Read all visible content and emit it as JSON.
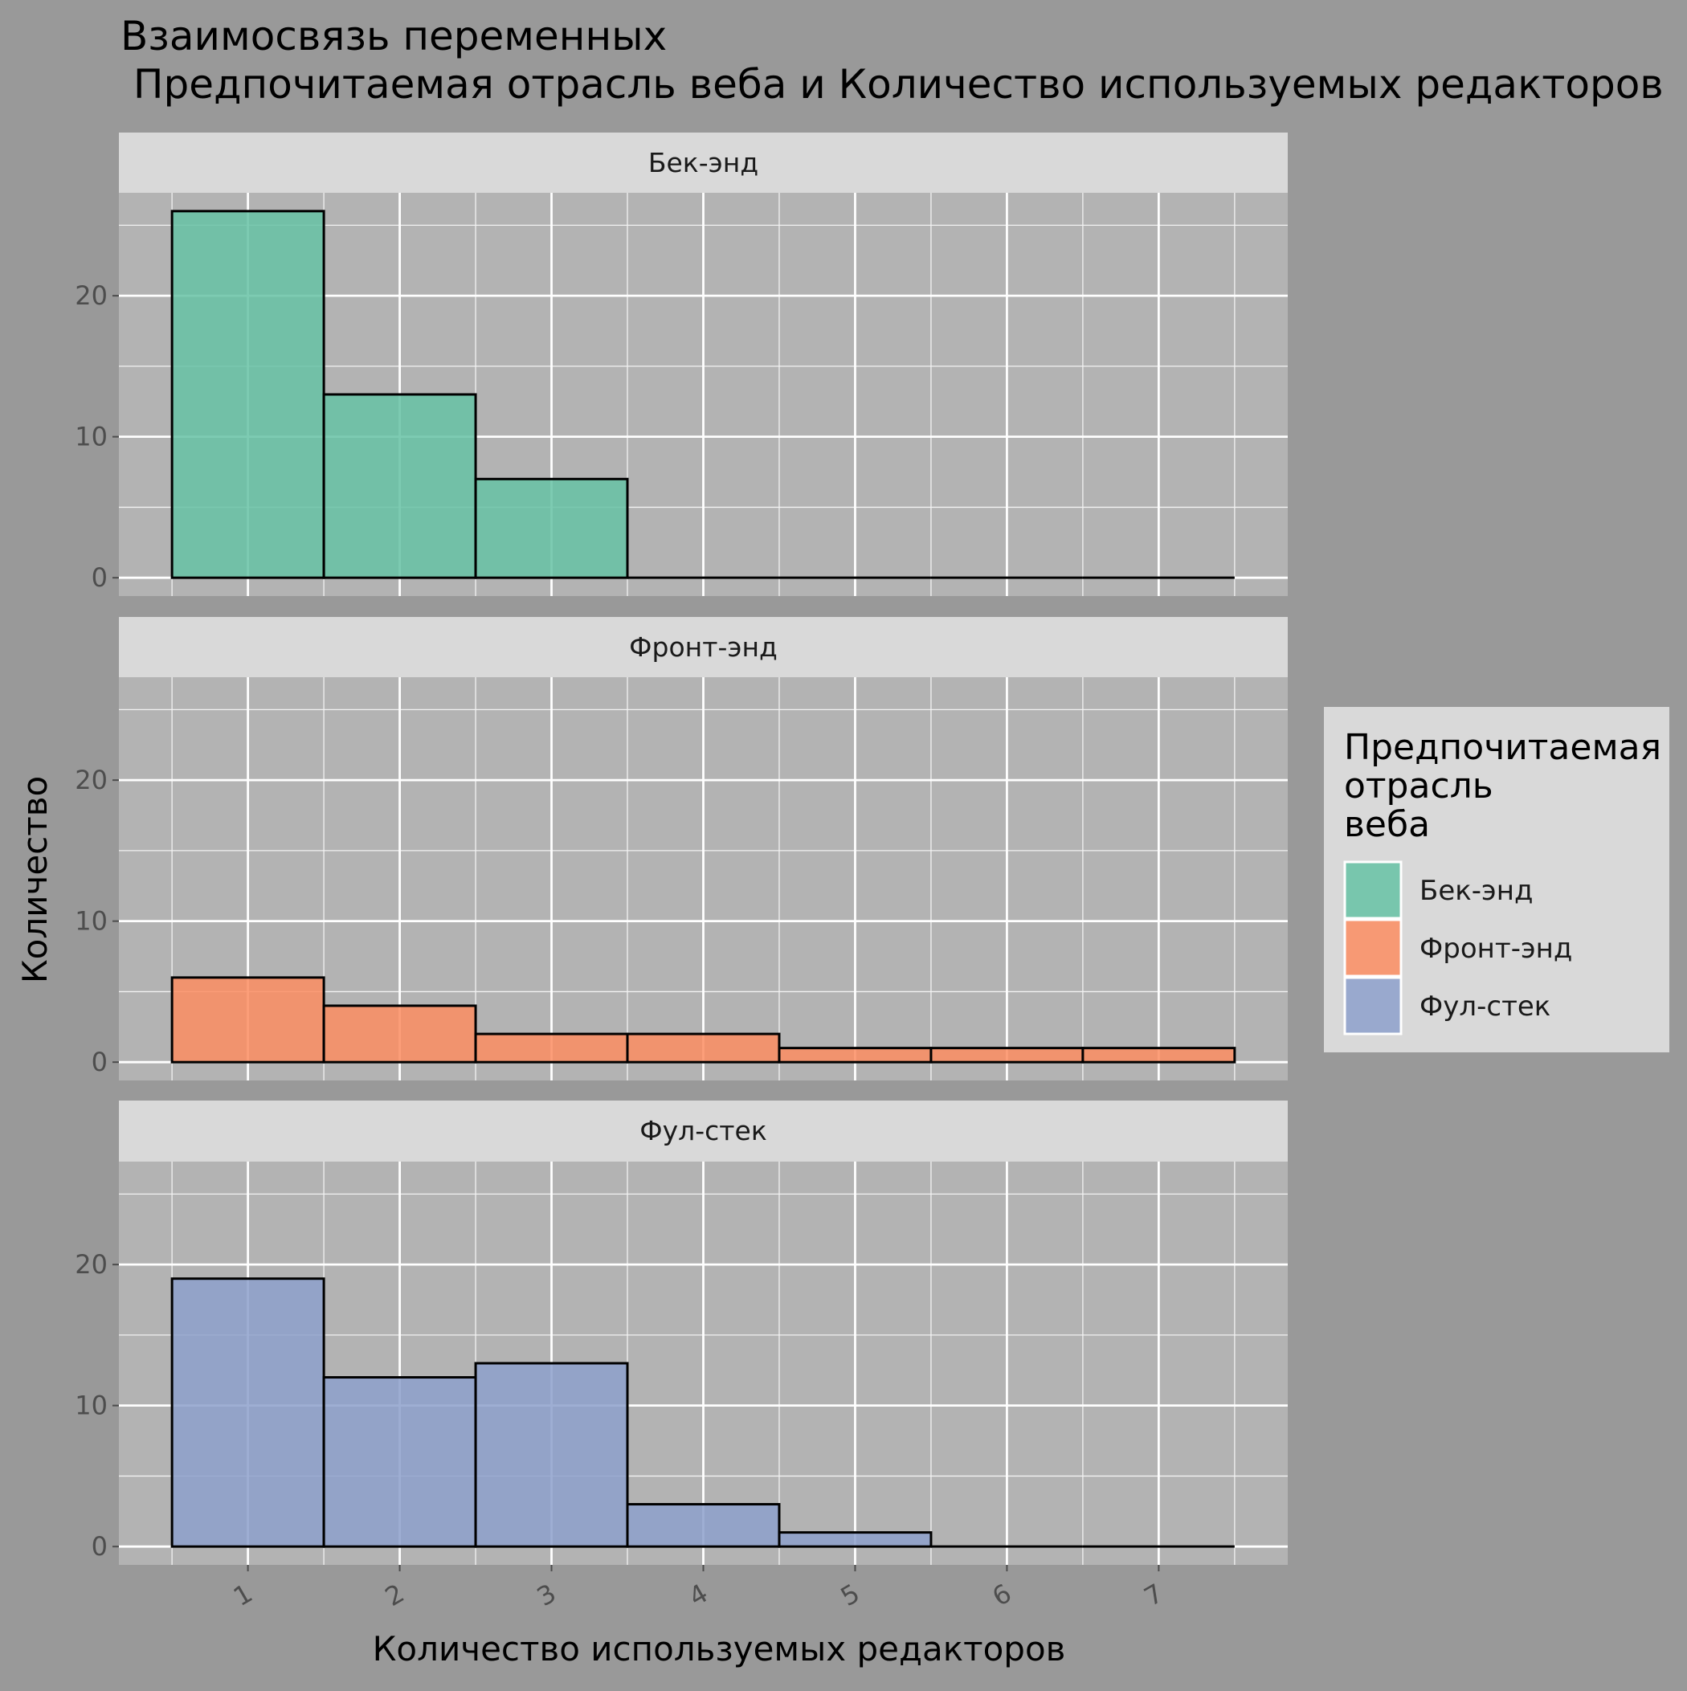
{
  "chart_data": {
    "type": "bar",
    "title_line1": "Взаимосвязь переменных",
    "title_line2": " Предпочитаемая отрасль веба и Количество используемых редакторов",
    "xlabel": "Количество используемых редакторов",
    "ylabel": "Количество",
    "x_ticks": [
      "1",
      "2",
      "3",
      "4",
      "5",
      "6",
      "7"
    ],
    "y_ticks": [
      "0",
      "10",
      "20"
    ],
    "xlim": [
      0.15,
      7.85
    ],
    "ylim": [
      -1.3,
      27.3
    ],
    "legend": {
      "title_lines": [
        "Предпочитаемая",
        "отрасль",
        "веба"
      ],
      "position": "right"
    },
    "series": [
      {
        "name": "Бек-энд",
        "color": "#66c2a5",
        "bins": [
          1,
          2,
          3,
          4,
          5,
          6,
          7
        ],
        "values": [
          26,
          13,
          7,
          0,
          0,
          0,
          0
        ]
      },
      {
        "name": "Фронт-энд",
        "color": "#fc8d62",
        "bins": [
          1,
          2,
          3,
          4,
          5,
          6,
          7
        ],
        "values": [
          6,
          4,
          2,
          2,
          1,
          1,
          1
        ]
      },
      {
        "name": "Фул-стек",
        "color": "#8da0cb",
        "bins": [
          1,
          2,
          3,
          4,
          5,
          6,
          7
        ],
        "values": [
          19,
          12,
          13,
          3,
          1,
          0,
          0
        ]
      }
    ]
  }
}
